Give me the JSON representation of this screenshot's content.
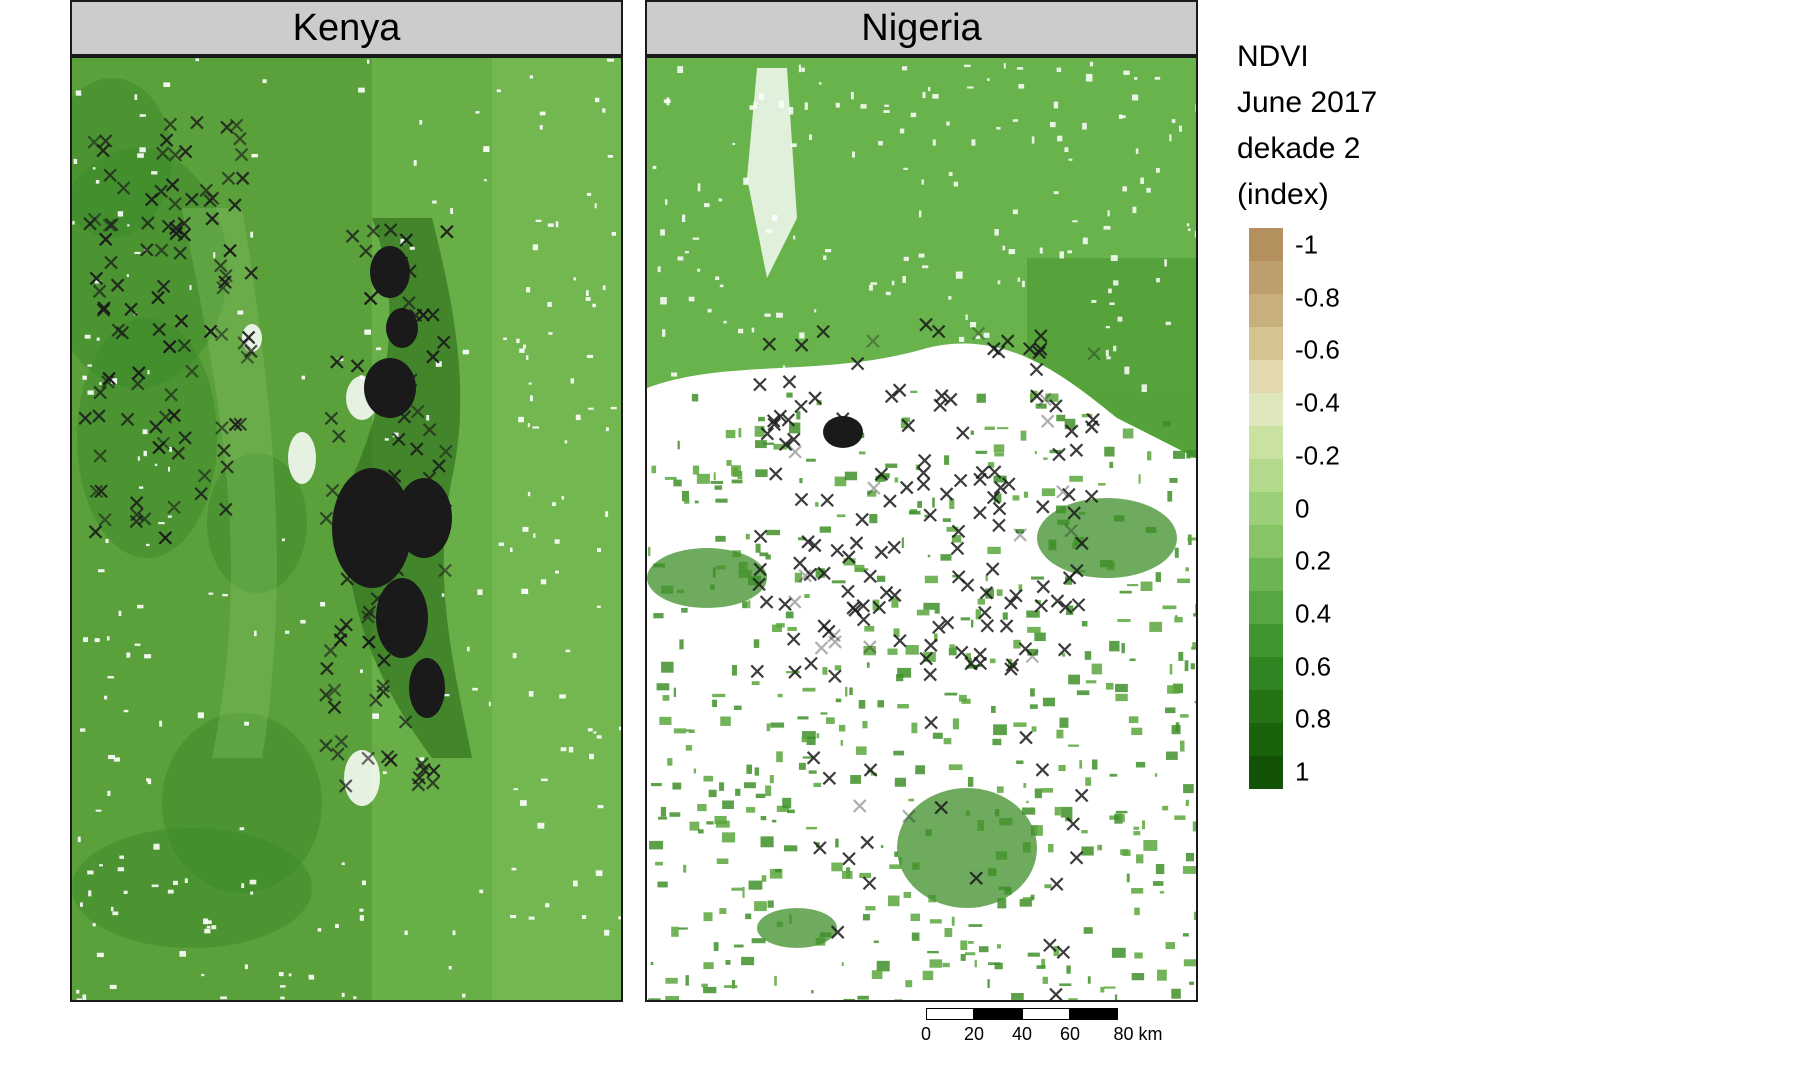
{
  "panels": [
    {
      "title": "Kenya"
    },
    {
      "title": "Nigeria"
    }
  ],
  "legend": {
    "title_lines": [
      "NDVI",
      "June 2017",
      "dekade 2",
      "(index)"
    ],
    "ticks": [
      "-1",
      "-0.8",
      "-0.6",
      "-0.4",
      "-0.2",
      "0",
      "0.2",
      "0.4",
      "0.6",
      "0.8",
      "1"
    ],
    "colors": [
      "#b4905e",
      "#bd9f6d",
      "#c8b07e",
      "#d5c392",
      "#e2daae",
      "#dfe8bd",
      "#c9e2a2",
      "#b3d98c",
      "#9ccf79",
      "#86c465",
      "#6db552",
      "#57a641",
      "#43962f",
      "#328422",
      "#257316",
      "#1a620c",
      "#125207"
    ]
  },
  "scalebar": {
    "labels": [
      "0",
      "20",
      "40",
      "60",
      "80 km"
    ]
  },
  "colors": {
    "strip_bg": "#cccccc",
    "marker": "#1a1a1a",
    "kenya_base": "#5aa03b",
    "nigeria_base": "#62ad45"
  }
}
